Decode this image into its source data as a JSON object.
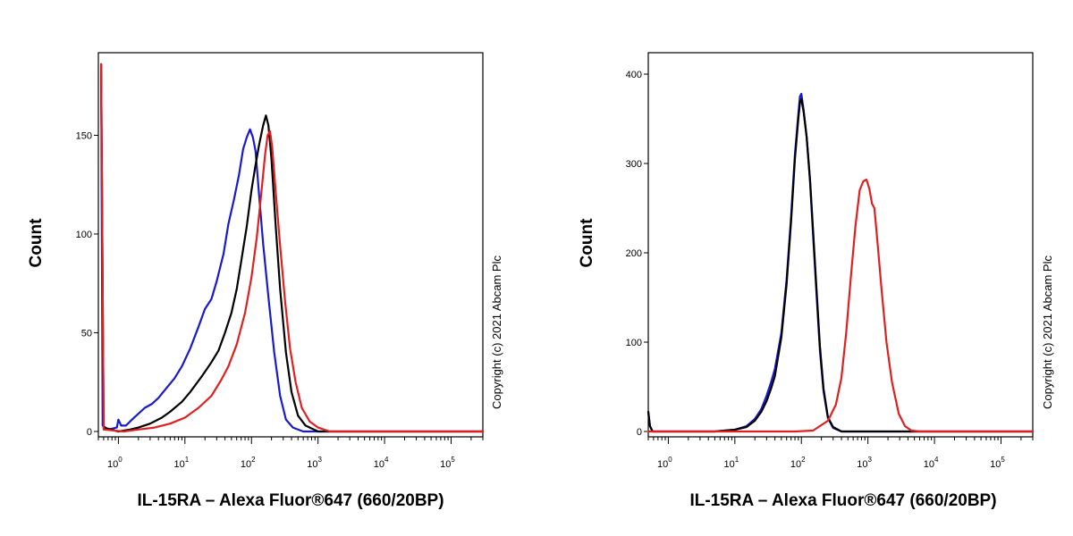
{
  "chart_data": [
    {
      "type": "line",
      "title": "",
      "xlabel": "IL-15RA – Alexa Fluor®647 (660/20BP)",
      "ylabel": "Count",
      "xscale": "log",
      "xlim": [
        0.5,
        300000
      ],
      "ylim": [
        -5,
        190
      ],
      "yticks": [
        0,
        50,
        100,
        150
      ],
      "xticks": [
        {
          "base": "10",
          "exp": "0"
        },
        {
          "base": "10",
          "exp": "1"
        },
        {
          "base": "10",
          "exp": "2"
        },
        {
          "base": "10",
          "exp": "3"
        },
        {
          "base": "10",
          "exp": "4"
        },
        {
          "base": "10",
          "exp": "5"
        }
      ],
      "copyright": "Copyright (c) 2021 Abcam Plc",
      "series": [
        {
          "name": "blue",
          "color": "#1a1acc",
          "points": [
            [
              0.55,
              186
            ],
            [
              0.58,
              3
            ],
            [
              0.7,
              1
            ],
            [
              0.95,
              2
            ],
            [
              1.0,
              6
            ],
            [
              1.1,
              3
            ],
            [
              1.3,
              3
            ],
            [
              1.6,
              6
            ],
            [
              2.0,
              9
            ],
            [
              2.5,
              12
            ],
            [
              3.2,
              14
            ],
            [
              4.0,
              17
            ],
            [
              5.0,
              21
            ],
            [
              7.0,
              27
            ],
            [
              9.0,
              33
            ],
            [
              12,
              42
            ],
            [
              16,
              53
            ],
            [
              20,
              62
            ],
            [
              25,
              67
            ],
            [
              30,
              76
            ],
            [
              38,
              90
            ],
            [
              45,
              105
            ],
            [
              55,
              118
            ],
            [
              65,
              130
            ],
            [
              75,
              143
            ],
            [
              85,
              149
            ],
            [
              95,
              153
            ],
            [
              105,
              149
            ],
            [
              115,
              142
            ],
            [
              130,
              120
            ],
            [
              150,
              95
            ],
            [
              180,
              68
            ],
            [
              220,
              40
            ],
            [
              270,
              18
            ],
            [
              330,
              6
            ],
            [
              420,
              2
            ],
            [
              600,
              0
            ],
            [
              2000,
              0
            ],
            [
              300000,
              0
            ]
          ]
        },
        {
          "name": "black",
          "color": "#000000",
          "points": [
            [
              0.55,
              186
            ],
            [
              0.6,
              2
            ],
            [
              1.0,
              0
            ],
            [
              1.5,
              1
            ],
            [
              2.0,
              2
            ],
            [
              3.0,
              4
            ],
            [
              4.5,
              7
            ],
            [
              6.0,
              10
            ],
            [
              9.0,
              15
            ],
            [
              12,
              20
            ],
            [
              18,
              28
            ],
            [
              25,
              35
            ],
            [
              32,
              41
            ],
            [
              40,
              50
            ],
            [
              50,
              60
            ],
            [
              60,
              72
            ],
            [
              70,
              86
            ],
            [
              85,
              104
            ],
            [
              100,
              122
            ],
            [
              115,
              135
            ],
            [
              130,
              145
            ],
            [
              150,
              155
            ],
            [
              165,
              160
            ],
            [
              180,
              155
            ],
            [
              200,
              138
            ],
            [
              230,
              105
            ],
            [
              270,
              72
            ],
            [
              330,
              40
            ],
            [
              400,
              20
            ],
            [
              500,
              8
            ],
            [
              650,
              3
            ],
            [
              1000,
              0
            ],
            [
              300000,
              0
            ]
          ]
        },
        {
          "name": "red",
          "color": "#e02020",
          "points": [
            [
              0.55,
              186
            ],
            [
              0.6,
              1
            ],
            [
              1.2,
              0
            ],
            [
              2.0,
              1
            ],
            [
              3.5,
              2
            ],
            [
              6.0,
              4
            ],
            [
              10,
              7
            ],
            [
              16,
              12
            ],
            [
              25,
              18
            ],
            [
              35,
              26
            ],
            [
              45,
              33
            ],
            [
              60,
              44
            ],
            [
              80,
              60
            ],
            [
              100,
              78
            ],
            [
              120,
              98
            ],
            [
              140,
              120
            ],
            [
              160,
              140
            ],
            [
              175,
              150
            ],
            [
              190,
              152
            ],
            [
              205,
              144
            ],
            [
              230,
              122
            ],
            [
              270,
              94
            ],
            [
              320,
              66
            ],
            [
              380,
              42
            ],
            [
              460,
              25
            ],
            [
              570,
              12
            ],
            [
              750,
              5
            ],
            [
              1000,
              2
            ],
            [
              1500,
              0
            ],
            [
              300000,
              0
            ]
          ]
        }
      ]
    },
    {
      "type": "line",
      "title": "",
      "xlabel": "IL-15RA – Alexa Fluor®647 (660/20BP)",
      "ylabel": "Count",
      "xscale": "log",
      "xlim": [
        0.5,
        300000
      ],
      "ylim": [
        -5,
        420
      ],
      "yticks": [
        0,
        100,
        200,
        300,
        400
      ],
      "xticks": [
        {
          "base": "10",
          "exp": "0"
        },
        {
          "base": "10",
          "exp": "1"
        },
        {
          "base": "10",
          "exp": "2"
        },
        {
          "base": "10",
          "exp": "3"
        },
        {
          "base": "10",
          "exp": "4"
        },
        {
          "base": "10",
          "exp": "5"
        }
      ],
      "copyright": "Copyright (c) 2021 Abcam Plc",
      "series": [
        {
          "name": "blue",
          "color": "#1a1acc",
          "points": [
            [
              0.5,
              22
            ],
            [
              0.53,
              6
            ],
            [
              0.58,
              0
            ],
            [
              1.0,
              0
            ],
            [
              5.0,
              0
            ],
            [
              10,
              2
            ],
            [
              15,
              6
            ],
            [
              20,
              14
            ],
            [
              25,
              25
            ],
            [
              30,
              40
            ],
            [
              35,
              55
            ],
            [
              40,
              70
            ],
            [
              50,
              110
            ],
            [
              60,
              170
            ],
            [
              70,
              240
            ],
            [
              80,
              310
            ],
            [
              90,
              355
            ],
            [
              95,
              375
            ],
            [
              100,
              378
            ],
            [
              108,
              360
            ],
            [
              120,
              330
            ],
            [
              135,
              280
            ],
            [
              150,
              220
            ],
            [
              170,
              150
            ],
            [
              190,
              90
            ],
            [
              215,
              45
            ],
            [
              250,
              15
            ],
            [
              300,
              4
            ],
            [
              400,
              0
            ],
            [
              300000,
              0
            ]
          ]
        },
        {
          "name": "black",
          "color": "#000000",
          "points": [
            [
              0.5,
              22
            ],
            [
              0.53,
              6
            ],
            [
              0.58,
              0
            ],
            [
              1.0,
              0
            ],
            [
              5.0,
              0
            ],
            [
              10,
              2
            ],
            [
              15,
              5
            ],
            [
              20,
              12
            ],
            [
              25,
              22
            ],
            [
              30,
              34
            ],
            [
              35,
              48
            ],
            [
              40,
              62
            ],
            [
              50,
              105
            ],
            [
              60,
              165
            ],
            [
              70,
              235
            ],
            [
              80,
              305
            ],
            [
              90,
              350
            ],
            [
              95,
              368
            ],
            [
              100,
              372
            ],
            [
              108,
              358
            ],
            [
              120,
              330
            ],
            [
              135,
              282
            ],
            [
              150,
              225
            ],
            [
              170,
              155
            ],
            [
              190,
              95
            ],
            [
              215,
              48
            ],
            [
              250,
              16
            ],
            [
              300,
              5
            ],
            [
              400,
              0
            ],
            [
              300000,
              0
            ]
          ]
        },
        {
          "name": "red",
          "color": "#e02020",
          "points": [
            [
              0.5,
              0
            ],
            [
              30,
              0
            ],
            [
              80,
              0
            ],
            [
              150,
              1
            ],
            [
              250,
              12
            ],
            [
              330,
              30
            ],
            [
              400,
              60
            ],
            [
              470,
              110
            ],
            [
              550,
              170
            ],
            [
              650,
              230
            ],
            [
              750,
              270
            ],
            [
              850,
              280
            ],
            [
              950,
              282
            ],
            [
              1050,
              272
            ],
            [
              1150,
              255
            ],
            [
              1250,
              250
            ],
            [
              1400,
              210
            ],
            [
              1600,
              160
            ],
            [
              1900,
              100
            ],
            [
              2300,
              55
            ],
            [
              2900,
              20
            ],
            [
              3600,
              6
            ],
            [
              4500,
              1
            ],
            [
              6000,
              0
            ],
            [
              300000,
              0
            ]
          ]
        }
      ]
    }
  ]
}
